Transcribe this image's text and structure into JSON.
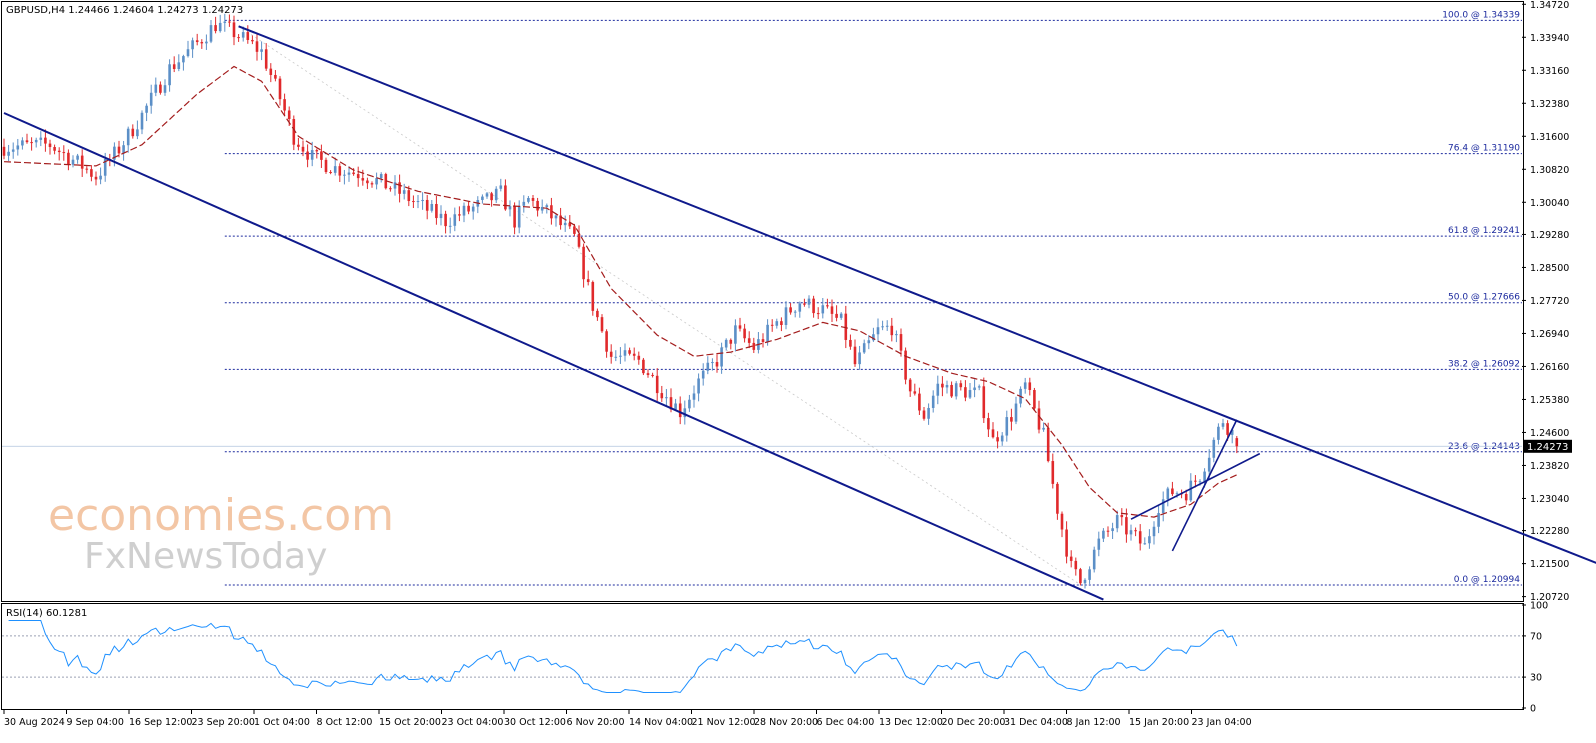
{
  "colors": {
    "bull": "#5b8fc7",
    "bear": "#e0292b",
    "channel": "#0f1a8c",
    "fib": "#1c2a9e",
    "ema": "#a41d1d",
    "rsi": "#1e90ff",
    "axis": "#000000",
    "grid_dash": "#9aa0b4",
    "watermark": "#f3c6a5",
    "watermark2": "#cfcfcf"
  },
  "header": {
    "title": "GBPUSD,H4  1.24466 1.24604 1.24273 1.24273"
  },
  "watermark": {
    "line1": "economies.com",
    "line2": "FxNewsToday"
  },
  "price_badge": "1.24273",
  "rsi_header": "RSI(14) 60.1281",
  "chart_data": [
    {
      "type": "candlestick",
      "title": "GBPUSD,H4",
      "ohlc_last": {
        "open": 1.24466,
        "high": 1.24604,
        "low": 1.24273,
        "close": 1.24273
      },
      "ylim": [
        1.2064,
        1.3475
      ],
      "y_ticks": [
        "1.34720",
        "1.33940",
        "1.33160",
        "1.32380",
        "1.31600",
        "1.30820",
        "1.30040",
        "1.29280",
        "1.28500",
        "1.27720",
        "1.26940",
        "1.26160",
        "1.25380",
        "1.24600",
        "1.23820",
        "1.23040",
        "1.22280",
        "1.21500",
        "1.20720"
      ],
      "x_ticks": [
        "30 Aug 2024",
        "9 Sep 04:00",
        "16 Sep 12:00",
        "23 Sep 20:00",
        "1 Oct 04:00",
        "8 Oct 12:00",
        "15 Oct 20:00",
        "23 Oct 04:00",
        "30 Oct 12:00",
        "6 Nov 20:00",
        "14 Nov 04:00",
        "21 Nov 12:00",
        "28 Nov 20:00",
        "6 Dec 04:00",
        "13 Dec 12:00",
        "20 Dec 20:00",
        "31 Dec 04:00",
        "8 Jan 12:00",
        "15 Jan 20:00",
        "23 Jan 04:00"
      ],
      "path_anchors": [
        [
          0,
          1.3135
        ],
        [
          10,
          1.314
        ],
        [
          17,
          1.309
        ],
        [
          20,
          1.3065
        ],
        [
          25,
          1.313
        ],
        [
          30,
          1.321
        ],
        [
          36,
          1.332
        ],
        [
          42,
          1.338
        ],
        [
          46,
          1.3425
        ],
        [
          50,
          1.3405
        ],
        [
          56,
          1.336
        ],
        [
          60,
          1.325
        ],
        [
          63,
          1.316
        ],
        [
          67,
          1.311
        ],
        [
          72,
          1.3085
        ],
        [
          78,
          1.307
        ],
        [
          84,
          1.304
        ],
        [
          90,
          1.3
        ],
        [
          96,
          1.296
        ],
        [
          102,
          1.299
        ],
        [
          108,
          1.3025
        ],
        [
          111,
          1.296
        ],
        [
          114,
          1.301
        ],
        [
          118,
          1.298
        ],
        [
          124,
          1.292
        ],
        [
          128,
          1.276
        ],
        [
          132,
          1.264
        ],
        [
          138,
          1.263
        ],
        [
          143,
          1.256
        ],
        [
          147,
          1.251
        ],
        [
          151,
          1.258
        ],
        [
          155,
          1.263
        ],
        [
          159,
          1.27
        ],
        [
          163,
          1.266
        ],
        [
          168,
          1.272
        ],
        [
          173,
          1.277
        ],
        [
          178,
          1.275
        ],
        [
          182,
          1.272
        ],
        [
          185,
          1.262
        ],
        [
          190,
          1.27
        ],
        [
          193,
          1.271
        ],
        [
          197,
          1.256
        ],
        [
          200,
          1.25
        ],
        [
          203,
          1.257
        ],
        [
          208,
          1.256
        ],
        [
          212,
          1.255
        ],
        [
          215,
          1.244
        ],
        [
          219,
          1.25
        ],
        [
          222,
          1.257
        ],
        [
          226,
          1.245
        ],
        [
          229,
          1.228
        ],
        [
          232,
          1.214
        ],
        [
          234,
          1.2105
        ],
        [
          238,
          1.22
        ],
        [
          242,
          1.225
        ],
        [
          245,
          1.222
        ],
        [
          248,
          1.219
        ],
        [
          251,
          1.229
        ],
        [
          254,
          1.232
        ],
        [
          257,
          1.232
        ],
        [
          260,
          1.236
        ],
        [
          263,
          1.244
        ],
        [
          265,
          1.249
        ],
        [
          267,
          1.246
        ],
        [
          268,
          1.2427
        ]
      ],
      "ema_anchors": [
        [
          0,
          1.31
        ],
        [
          20,
          1.309
        ],
        [
          30,
          1.314
        ],
        [
          42,
          1.326
        ],
        [
          50,
          1.3325
        ],
        [
          56,
          1.329
        ],
        [
          64,
          1.316
        ],
        [
          76,
          1.308
        ],
        [
          90,
          1.303
        ],
        [
          104,
          1.3
        ],
        [
          118,
          1.299
        ],
        [
          124,
          1.295
        ],
        [
          132,
          1.28
        ],
        [
          142,
          1.269
        ],
        [
          150,
          1.264
        ],
        [
          158,
          1.265
        ],
        [
          168,
          1.268
        ],
        [
          178,
          1.272
        ],
        [
          186,
          1.27
        ],
        [
          196,
          1.264
        ],
        [
          206,
          1.26
        ],
        [
          214,
          1.258
        ],
        [
          222,
          1.254
        ],
        [
          230,
          1.243
        ],
        [
          236,
          1.233
        ],
        [
          242,
          1.227
        ],
        [
          250,
          1.226
        ],
        [
          258,
          1.229
        ],
        [
          264,
          1.234
        ],
        [
          268,
          1.236
        ]
      ],
      "fibonacci": [
        {
          "label": "100.0 @ 1.34339",
          "value": 1.34339
        },
        {
          "label": "76.4 @ 1.31190",
          "value": 1.3119
        },
        {
          "label": "61.8 @ 1.29241",
          "value": 1.29241
        },
        {
          "label": "50.0 @ 1.27666",
          "value": 1.27666
        },
        {
          "label": "38.2 @ 1.26092",
          "value": 1.26092
        },
        {
          "label": "23.6 @ 1.24143",
          "value": 1.24143
        },
        {
          "label": "0.0 @ 1.20994",
          "value": 1.20994
        }
      ],
      "fib_start_bar": 48,
      "current_price": 1.24273,
      "channel_lines": [
        {
          "name": "upper",
          "from": [
            51,
            1.342
          ],
          "to": [
            350,
            1.2135
          ]
        },
        {
          "name": "lower",
          "from": [
            0,
            1.3215
          ],
          "to": [
            239,
            1.2065
          ]
        },
        {
          "name": "mini-left",
          "from": [
            254,
            1.218
          ],
          "to": [
            268,
            1.249
          ]
        },
        {
          "name": "mini-right",
          "from": [
            245,
            1.2255
          ],
          "to": [
            273,
            1.241
          ]
        }
      ],
      "fib_diagonal": {
        "from": [
          51,
          1.342
        ],
        "to": [
          234,
          1.21
        ]
      }
    },
    {
      "type": "line",
      "title": "RSI(14) 60.1281",
      "ylim": [
        0,
        100
      ],
      "y_ticks": [
        "100",
        "70",
        "30",
        "0"
      ],
      "levels": [
        70,
        30
      ],
      "last_value": 60.1281
    }
  ]
}
